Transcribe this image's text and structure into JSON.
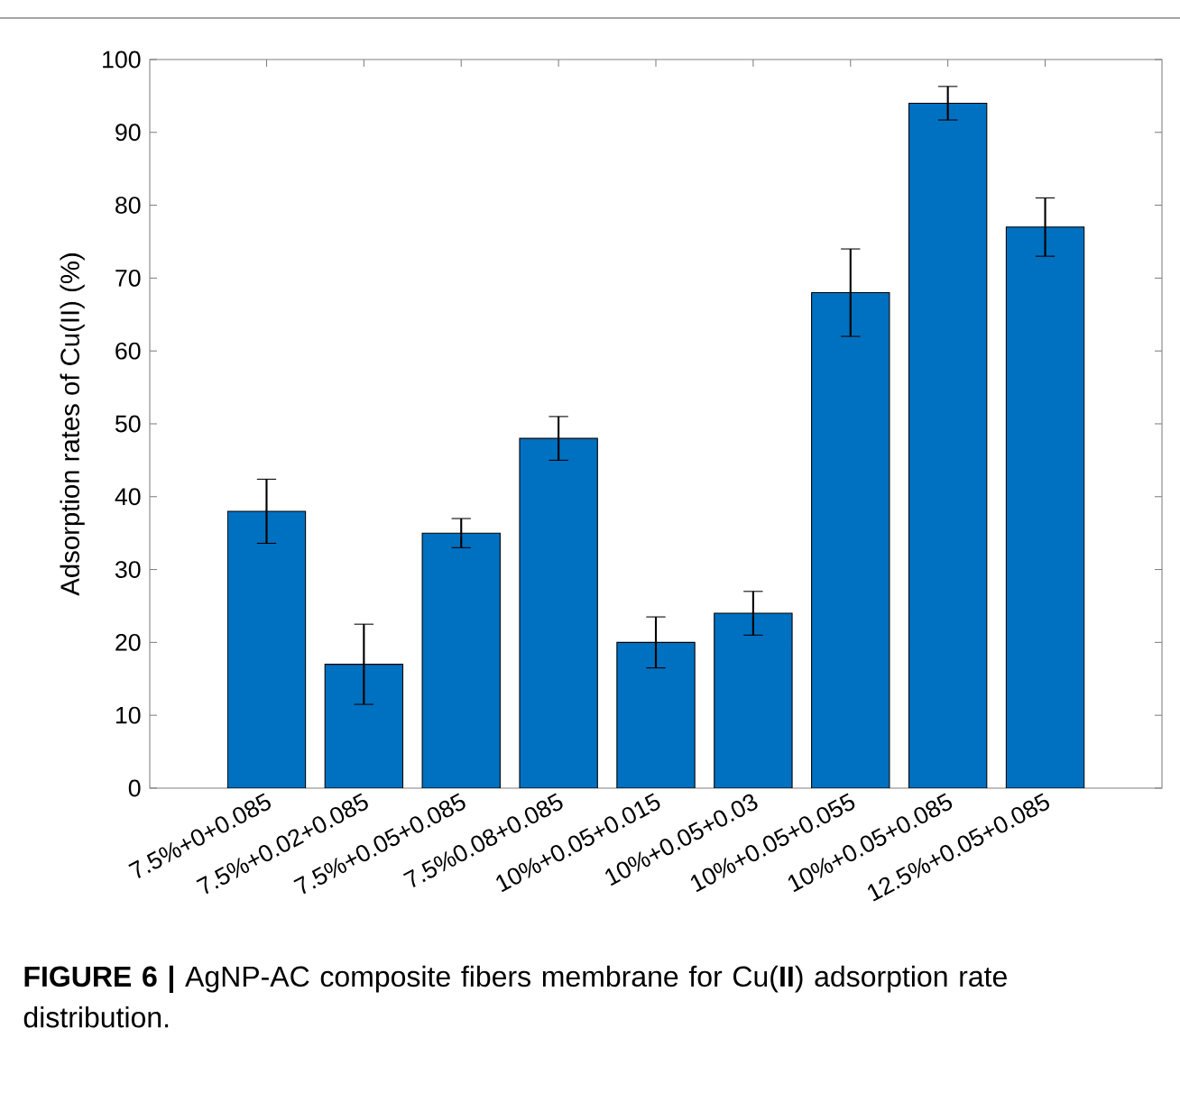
{
  "chart_data": {
    "type": "bar",
    "ylabel": "Adsorption rates of Cu(II) (%)",
    "categories": [
      "7.5%+0+0.085",
      "7.5%+0.02+0.085",
      "7.5%+0.05+0.085",
      "7.5%0.08+0.085",
      "10%+0.05+0.015",
      "10%+0.05+0.03",
      "10%+0.05+0.055",
      "10%+0.05+0.085",
      "12.5%+0.05+0.085"
    ],
    "values": [
      38,
      17,
      35,
      48,
      20,
      24,
      68,
      94,
      77
    ],
    "errors": [
      4.4,
      5.5,
      2,
      3,
      3.5,
      3,
      6,
      2.3,
      4
    ],
    "color": "#0070c0",
    "ylim": [
      0,
      100
    ],
    "yticks": [
      0,
      10,
      20,
      30,
      40,
      50,
      60,
      70,
      80,
      90,
      100
    ],
    "grid": false,
    "annotations": [
      "**FIGURE 6 |** AgNP-AC composite fibers membrane for Cu(**II**) adsorption rate distribution."
    ]
  }
}
